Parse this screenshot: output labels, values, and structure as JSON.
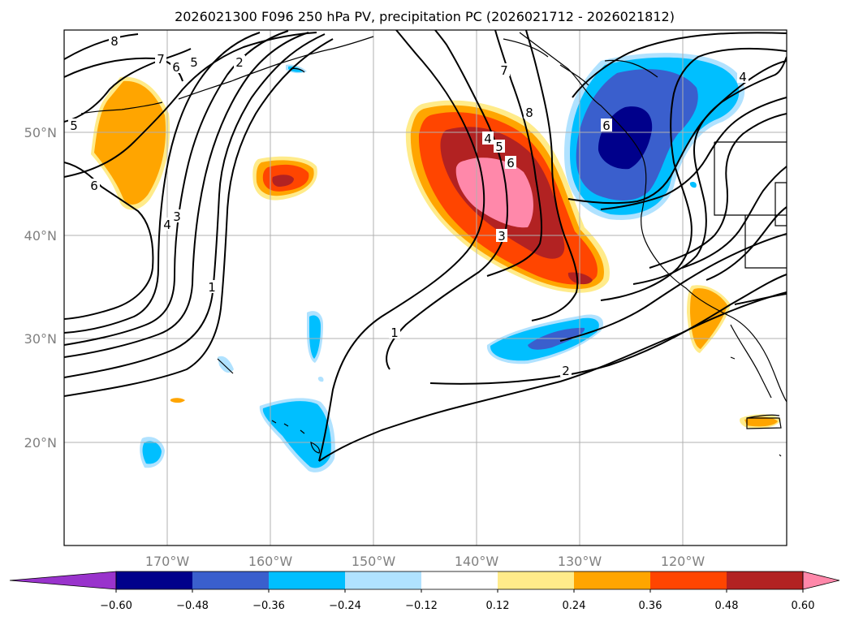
{
  "chart_data": {
    "type": "contour-map",
    "title": "2026021300 F096 250 hPa PV, precipitation PC (2026021712 - 2026021812)",
    "x_ticks": [
      "170°W",
      "160°W",
      "150°W",
      "140°W",
      "130°W",
      "120°W"
    ],
    "y_ticks": [
      "50°N",
      "40°N",
      "30°N",
      "20°N"
    ],
    "lon_range": [
      180,
      110
    ],
    "lat_range": [
      10,
      60
    ],
    "colorbar": {
      "ticks": [
        "−0.60",
        "−0.48",
        "−0.36",
        "−0.24",
        "−0.12",
        "0.12",
        "0.24",
        "0.36",
        "0.48",
        "0.60"
      ],
      "levels": [
        -0.6,
        -0.48,
        -0.36,
        -0.24,
        -0.12,
        0.12,
        0.24,
        0.36,
        0.48,
        0.6
      ],
      "colors": [
        "#9933cc",
        "#00008b",
        "#3a5fcd",
        "#00bfff",
        "#b0e2ff",
        "#ffffff",
        "#ffeb8a",
        "#ffa500",
        "#ff4500",
        "#b22222",
        "#ff88aa"
      ],
      "extend": "both"
    },
    "pv_contour_labels": [
      "8",
      "7",
      "6",
      "5",
      "2",
      "5",
      "6",
      "4",
      "3",
      "1",
      "4",
      "5",
      "6",
      "3",
      "7",
      "8",
      "1",
      "2",
      "4",
      "6"
    ]
  }
}
